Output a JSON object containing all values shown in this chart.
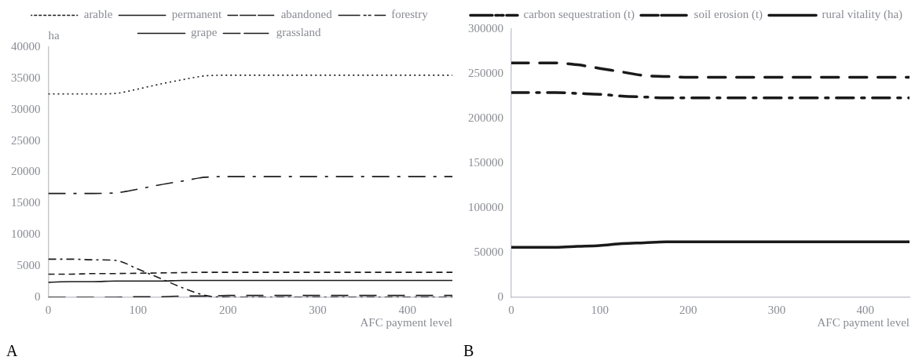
{
  "chart_data": [
    {
      "type": "line",
      "xlabel": "AFC payment level",
      "ylabel": "ha",
      "x": [
        0,
        25,
        50,
        75,
        100,
        125,
        150,
        175,
        200,
        250,
        300,
        350,
        400,
        450
      ],
      "xlim": [
        0,
        450
      ],
      "xticks": [
        0,
        100,
        200,
        300,
        400
      ],
      "ylim": [
        0,
        40000
      ],
      "yticks": [
        0,
        5000,
        10000,
        15000,
        20000,
        25000,
        30000,
        35000,
        40000
      ],
      "grid": false,
      "legend": "top",
      "marker": "none",
      "annotations": [
        "A"
      ],
      "series": [
        {
          "name": "arable",
          "color": "#1a1a1a",
          "line_style": "dotted",
          "values": [
            32500,
            32500,
            32500,
            32600,
            33300,
            34100,
            34800,
            35400,
            35500,
            35500,
            35500,
            35500,
            35500,
            35500
          ]
        },
        {
          "name": "permanent",
          "color": "#1a1a1a",
          "line_style": "dashed",
          "values": [
            3700,
            3700,
            3800,
            3800,
            3850,
            3900,
            3950,
            4000,
            4000,
            4000,
            4000,
            4000,
            4000,
            4000
          ]
        },
        {
          "name": "abandoned",
          "color": "#1a1a1a",
          "line_style": "dashdot",
          "values": [
            6100,
            6100,
            6000,
            5900,
            4500,
            3000,
            1500,
            300,
            0,
            0,
            0,
            0,
            0,
            0
          ]
        },
        {
          "name": "forestry",
          "color": "#1a1a1a",
          "line_style": "longdashdot",
          "values": [
            16600,
            16600,
            16600,
            16700,
            17300,
            18000,
            18600,
            19200,
            19300,
            19300,
            19300,
            19300,
            19300,
            19300
          ]
        },
        {
          "name": "grape",
          "color": "#1a1a1a",
          "line_style": "solid",
          "values": [
            2400,
            2500,
            2500,
            2600,
            2600,
            2600,
            2700,
            2700,
            2700,
            2700,
            2700,
            2700,
            2700,
            2700
          ]
        },
        {
          "name": "grassland",
          "color": "#1a1a1a",
          "line_style": "longdash",
          "values": [
            0,
            0,
            0,
            0,
            100,
            100,
            200,
            200,
            300,
            300,
            300,
            300,
            300,
            300
          ]
        }
      ]
    },
    {
      "type": "line",
      "xlabel": "AFC payment level",
      "x": [
        0,
        25,
        50,
        75,
        100,
        125,
        150,
        175,
        200,
        250,
        300,
        350,
        400,
        450
      ],
      "xlim": [
        0,
        450
      ],
      "xticks": [
        0,
        100,
        200,
        300,
        400
      ],
      "ylim": [
        0,
        300000
      ],
      "yticks": [
        0,
        50000,
        100000,
        150000,
        200000,
        250000,
        300000
      ],
      "grid": false,
      "legend": "top",
      "marker": "none",
      "annotations": [
        "B"
      ],
      "series": [
        {
          "name": "carbon sequestration (t)",
          "color": "#1a1a1a",
          "line_style": "longdashdot",
          "values": [
            229000,
            229000,
            229000,
            228000,
            227000,
            225000,
            224000,
            223000,
            223000,
            223000,
            223000,
            223000,
            223000,
            223000
          ]
        },
        {
          "name": "soil erosion (t)",
          "color": "#1a1a1a",
          "line_style": "longdash",
          "values": [
            262000,
            262000,
            262000,
            260000,
            256000,
            252000,
            248000,
            247000,
            246000,
            246000,
            246000,
            246000,
            246000,
            246000
          ]
        },
        {
          "name": "rural vitality (ha)",
          "color": "#1a1a1a",
          "line_style": "solid",
          "values": [
            56000,
            56000,
            56000,
            57000,
            58000,
            60000,
            61000,
            62000,
            62000,
            62000,
            62000,
            62000,
            62000,
            62000
          ]
        }
      ]
    }
  ]
}
